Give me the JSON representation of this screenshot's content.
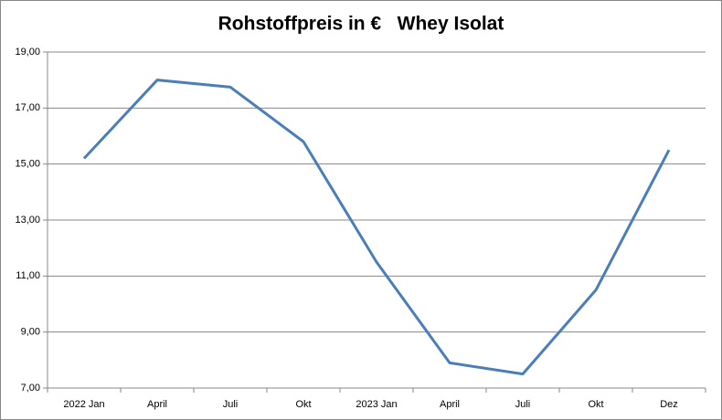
{
  "chart_data": {
    "type": "line",
    "title": "Rohstoffpreis in €   Whey Isolat",
    "categories": [
      "2022 Jan",
      "April",
      "Juli",
      "Okt",
      "2023 Jan",
      "April",
      "Juli",
      "Okt",
      "Dez"
    ],
    "series": [
      {
        "color": "#4a7ebb",
        "values": [
          15.2,
          18.0,
          17.75,
          15.8,
          11.5,
          7.9,
          7.5,
          10.5,
          15.5
        ]
      }
    ],
    "ylim": [
      7,
      19
    ],
    "yticks": [
      {
        "value": 7,
        "label": "7,00"
      },
      {
        "value": 9,
        "label": "9,00"
      },
      {
        "value": 11,
        "label": "11,00"
      },
      {
        "value": 13,
        "label": "13,00"
      },
      {
        "value": 15,
        "label": "15,00"
      },
      {
        "value": 17,
        "label": "17,00"
      },
      {
        "value": 19,
        "label": "19,00"
      }
    ],
    "grid": true
  }
}
